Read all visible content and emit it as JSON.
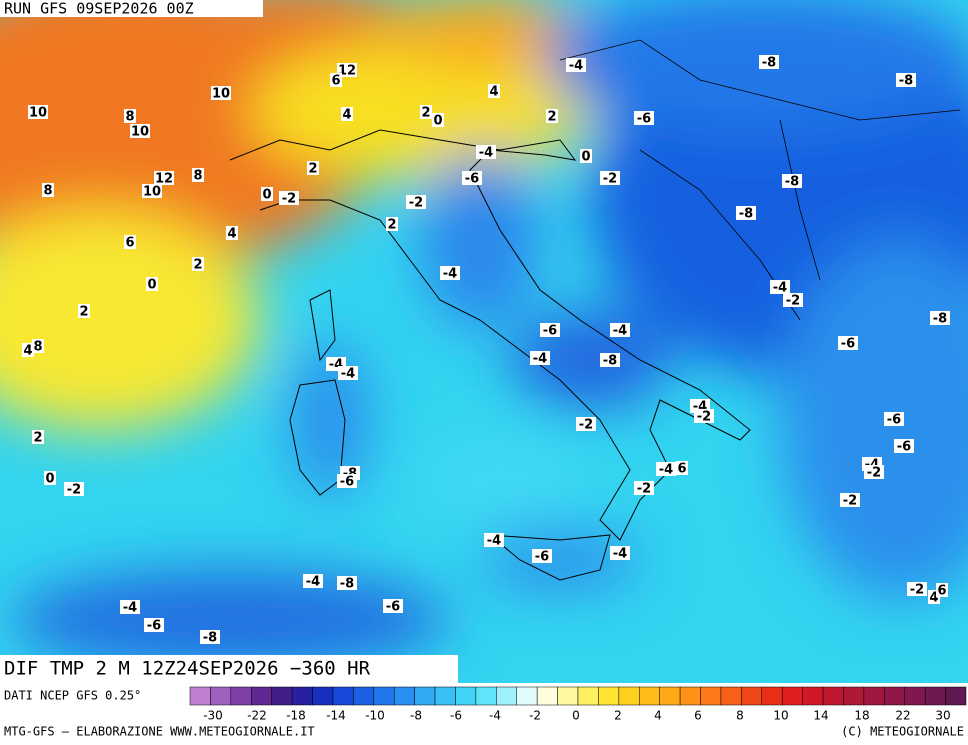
{
  "header": {
    "run": "RUN GFS 09SEP2026 00Z"
  },
  "map": {
    "labels": [
      "10",
      "8",
      "10",
      "8",
      "12",
      "10",
      "8",
      "10",
      "12",
      "6",
      "4",
      "2",
      "0",
      "4",
      "2",
      "-4",
      "-8",
      "-8",
      "-6",
      "-4",
      "0",
      "-6",
      "-2",
      "-8",
      "-8",
      "2",
      "0",
      "-2",
      "-2",
      "2",
      "4",
      "6",
      "2",
      "0",
      "2",
      "-4",
      "-4",
      "-2",
      "-8",
      "-6",
      "-4",
      "-6",
      "8",
      "4",
      "-4",
      "-8",
      "-4",
      "-4",
      "-4",
      "-2",
      "-2",
      "-6",
      "-6",
      "2",
      "0",
      "-2",
      "-8",
      "-6",
      "-4",
      "6",
      "-4",
      "-2",
      "-2",
      "-2",
      "-4",
      "-6",
      "-4",
      "-4",
      "-8",
      "-6",
      "-4",
      "-6",
      "-8",
      "-2",
      "4",
      "6"
    ]
  },
  "footer": {
    "product": "DIF TMP 2 M 12Z24SEP2026 −360 HR",
    "source": "DATI NCEP GFS 0.25°",
    "credit": "MTG-GFS — ELABORAZIONE WWW.METEOGIORNALE.IT",
    "copyright": "(C) METEOGIORNALE",
    "colorbar_labels": [
      -30,
      -22,
      -18,
      -14,
      -10,
      -8,
      -6,
      -4,
      -2,
      0,
      2,
      4,
      6,
      8,
      10,
      14,
      18,
      22,
      30
    ]
  }
}
